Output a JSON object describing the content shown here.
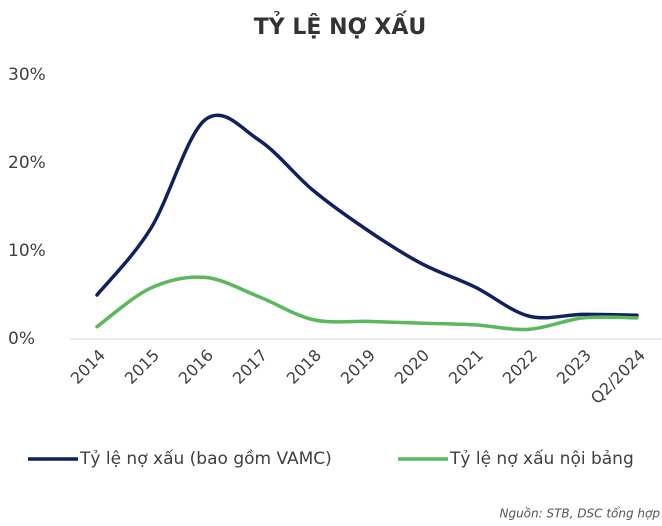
{
  "chart_data": {
    "type": "line",
    "title": "TỶ LỆ NỢ XẤU",
    "categories": [
      "2014",
      "2015",
      "2016",
      "2017",
      "2018",
      "2019",
      "2020",
      "2021",
      "2022",
      "2023",
      "Q2/2024"
    ],
    "series": [
      {
        "name": "Tỷ lệ nợ xấu (bao gồm VAMC)",
        "color": "#0e2161",
        "values": [
          5.0,
          12.6,
          24.9,
          22.6,
          16.9,
          12.4,
          8.6,
          5.9,
          2.6,
          2.8,
          2.7
        ]
      },
      {
        "name": "Tỷ lệ nợ xấu nội bảng",
        "color": "#5cb85c",
        "values": [
          1.4,
          5.8,
          7.0,
          4.8,
          2.2,
          2.0,
          1.8,
          1.6,
          1.1,
          2.4,
          2.4
        ]
      }
    ],
    "ylim": [
      0,
      30
    ],
    "yticks": [
      {
        "value": 0,
        "label": "0%"
      },
      {
        "value": 10,
        "label": "10%"
      },
      {
        "value": 20,
        "label": "20%"
      },
      {
        "value": 30,
        "label": "30%"
      }
    ],
    "grid": false,
    "legend": "bottom",
    "source": "Nguồn: STB, DSC tổng hợp"
  }
}
